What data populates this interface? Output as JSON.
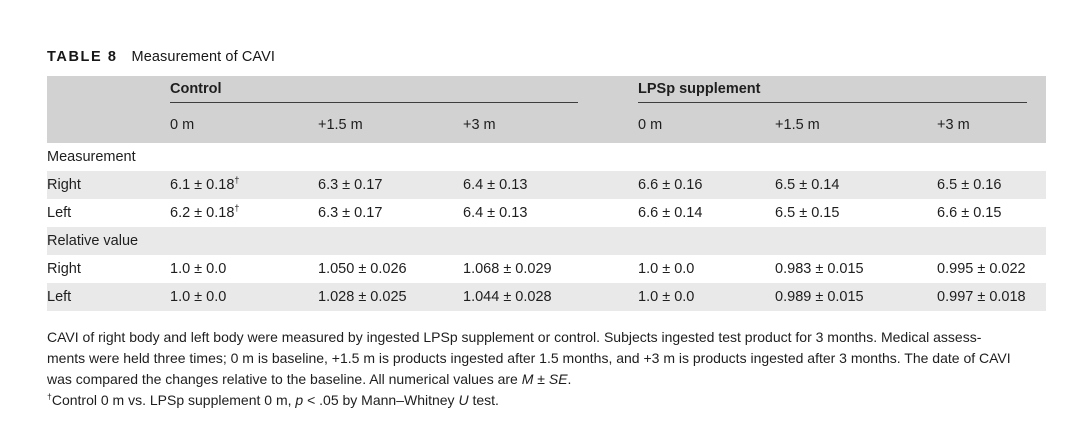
{
  "title": {
    "label": "TABLE 8",
    "caption": "Measurement of CAVI"
  },
  "table": {
    "colors": {
      "header_bg": "#d2d2d2",
      "stripe_bg": "#e9e9e9",
      "spanner_line": "#3d3d3d",
      "text": "#1e1e1e"
    },
    "spanners": [
      {
        "label": "Control",
        "colspan": 3
      },
      {
        "label": "LPSp supplement",
        "colspan": 3
      }
    ],
    "sub_headers": [
      "0 m",
      "+1.5 m",
      "+3 m",
      "0 m",
      "+1.5 m",
      "+3 m"
    ],
    "rows": [
      {
        "type": "section",
        "label": "Measurement",
        "shaded": false
      },
      {
        "type": "data",
        "label": "Right",
        "shaded": true,
        "values": [
          {
            "text": "6.1 ± 0.18",
            "sup": "†"
          },
          "6.3 ± 0.17",
          "6.4 ± 0.13",
          "6.6 ± 0.16",
          "6.5 ± 0.14",
          "6.5 ± 0.16"
        ]
      },
      {
        "type": "data",
        "label": "Left",
        "shaded": false,
        "values": [
          {
            "text": "6.2 ± 0.18",
            "sup": "†"
          },
          "6.3 ± 0.17",
          "6.4 ± 0.13",
          "6.6 ± 0.14",
          "6.5 ± 0.15",
          "6.6 ± 0.15"
        ]
      },
      {
        "type": "section",
        "label": "Relative value",
        "shaded": true
      },
      {
        "type": "data",
        "label": "Right",
        "shaded": false,
        "values": [
          "1.0 ± 0.0",
          "1.050 ± 0.026",
          "1.068 ± 0.029",
          "1.0 ± 0.0",
          "0.983 ± 0.015",
          "0.995 ± 0.022"
        ]
      },
      {
        "type": "data",
        "label": "Left",
        "shaded": true,
        "values": [
          "1.0 ± 0.0",
          "1.028 ± 0.025",
          "1.044 ± 0.028",
          "1.0 ± 0.0",
          "0.989 ± 0.015",
          "0.997 ± 0.018"
        ]
      }
    ]
  },
  "footnote": {
    "lines": [
      [
        {
          "t": "CAVI of right body and left body were measured by ingested LPSp supplement or control. Subjects ingested test product for 3 months. Medical assess-"
        }
      ],
      [
        {
          "t": "ments were held three times; 0 m is baseline, +1.5 m is products ingested after 1.5 months, and +3 m is products ingested after 3 months. The date of CAVI"
        }
      ],
      [
        {
          "t": "was compared the changes relative to the baseline. All numerical values are "
        },
        {
          "t": "M",
          "i": true
        },
        {
          "t": " ± "
        },
        {
          "t": "SE",
          "i": true
        },
        {
          "t": "."
        }
      ],
      [
        {
          "t": "†",
          "sup": true
        },
        {
          "t": "Control 0 m vs. LPSp supplement 0 m, "
        },
        {
          "t": "p",
          "i": true
        },
        {
          "t": " < .05 by Mann–Whitney "
        },
        {
          "t": "U",
          "i": true
        },
        {
          "t": " test."
        }
      ]
    ]
  }
}
